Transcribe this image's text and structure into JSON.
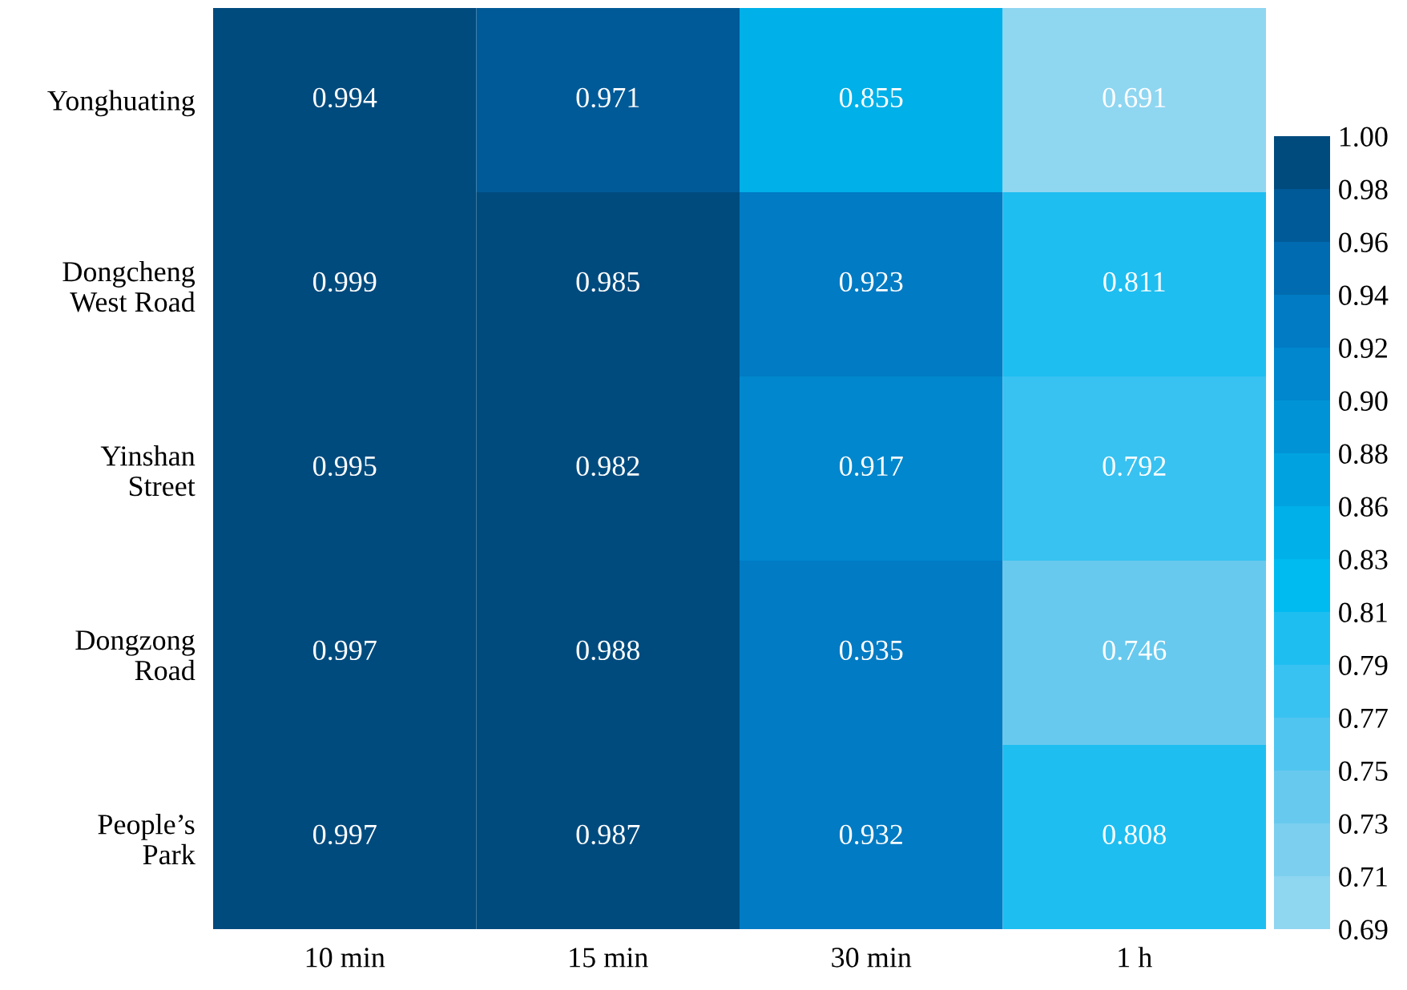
{
  "chart_data": {
    "type": "heatmap",
    "categories": [
      "10 min",
      "15 min",
      "30 min",
      "1 h"
    ],
    "y_categories": [
      "Yonghuating",
      "Dongcheng\nWest Road",
      "Yinshan\nStreet",
      "Dongzong\nRoad",
      "People’s\nPark"
    ],
    "cells": [
      [
        0.994,
        0.971,
        0.855,
        0.691
      ],
      [
        0.999,
        0.985,
        0.923,
        0.811
      ],
      [
        0.995,
        0.982,
        0.917,
        0.792
      ],
      [
        0.997,
        0.988,
        0.935,
        0.746
      ],
      [
        0.997,
        0.987,
        0.932,
        0.808
      ]
    ],
    "data_labels": true,
    "clim": [
      0.69,
      1.0
    ],
    "colors": [
      "#8fd6f1",
      "#7ccfef",
      "#68c9ee",
      "#50c5f0",
      "#38c2f1",
      "#1ebef1",
      "#00bbf0",
      "#00b0e8",
      "#00a3df",
      "#0094d6",
      "#0087cd",
      "#007bc4",
      "#006bb0",
      "#005a97",
      "#004b7e"
    ],
    "cticks": [
      {
        "value": 0.69,
        "label": "0.69"
      },
      {
        "value": 0.7106667,
        "label": "0.71"
      },
      {
        "value": 0.7313333,
        "label": "0.73"
      },
      {
        "value": 0.752,
        "label": "0.75"
      },
      {
        "value": 0.7726667,
        "label": "0.77"
      },
      {
        "value": 0.7933333,
        "label": "0.79"
      },
      {
        "value": 0.814,
        "label": "0.81"
      },
      {
        "value": 0.8346667,
        "label": "0.83"
      },
      {
        "value": 0.8553333,
        "label": "0.86"
      },
      {
        "value": 0.876,
        "label": "0.88"
      },
      {
        "value": 0.8966667,
        "label": "0.90"
      },
      {
        "value": 0.9173333,
        "label": "0.92"
      },
      {
        "value": 0.938,
        "label": "0.94"
      },
      {
        "value": 0.9586667,
        "label": "0.96"
      },
      {
        "value": 0.9793333,
        "label": "0.98"
      },
      {
        "value": 1.0,
        "label": "1.00"
      }
    ]
  }
}
